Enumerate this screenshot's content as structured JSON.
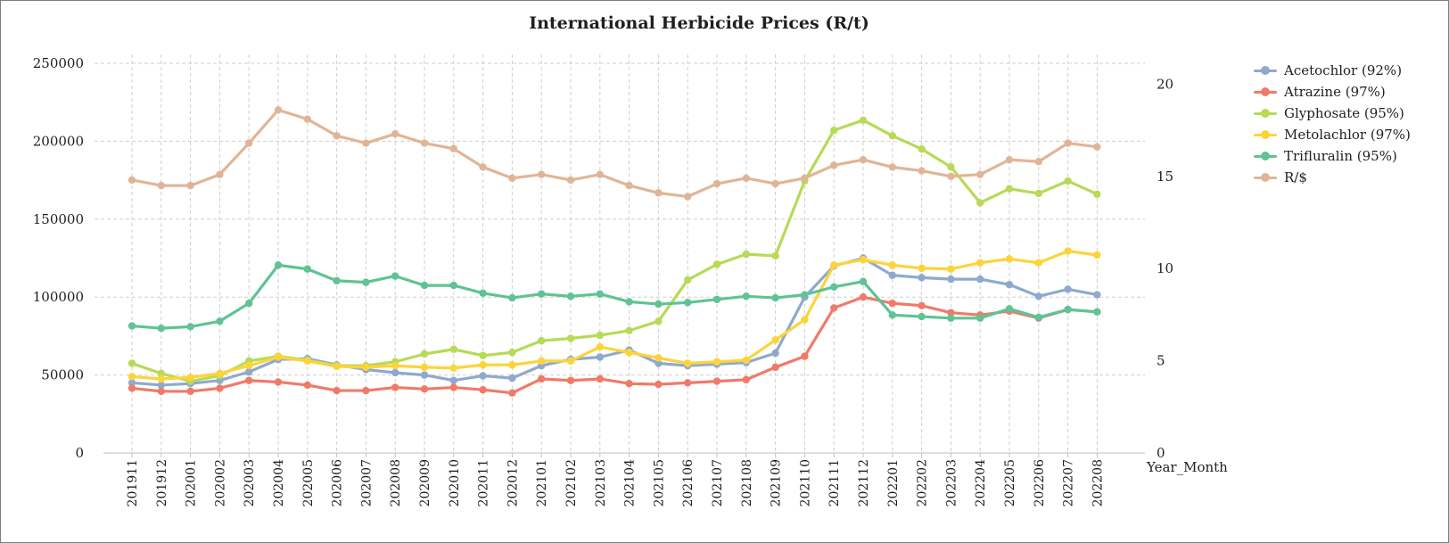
{
  "chart_data": {
    "type": "line",
    "title": "International Herbicide Prices (R/t)",
    "xlabel": "Year_Month",
    "ylabel": "",
    "categories": [
      "201911",
      "201912",
      "202001",
      "202002",
      "202003",
      "202004",
      "202005",
      "202006",
      "202007",
      "202008",
      "202009",
      "202010",
      "202011",
      "202012",
      "202101",
      "202102",
      "202103",
      "202104",
      "202105",
      "202106",
      "202107",
      "202108",
      "202109",
      "202110",
      "202111",
      "202112",
      "202201",
      "202202",
      "202203",
      "202204",
      "202205",
      "202206",
      "202207",
      "202208"
    ],
    "ylim": [
      0,
      250000
    ],
    "yticks": [
      "0",
      "50000",
      "100000",
      "150000",
      "200000",
      "250000"
    ],
    "y2lim": [
      0,
      22
    ],
    "y2ticks": [
      "0",
      "5",
      "10",
      "15",
      "20"
    ],
    "grid": true,
    "legend_position": "right",
    "series": [
      {
        "name": "Acetochlor (92%)",
        "axis": "left",
        "color": "#8FA9CE",
        "values": [
          45000,
          43500,
          44500,
          46500,
          52000,
          60000,
          60500,
          56500,
          53500,
          51500,
          50000,
          46500,
          49500,
          48000,
          56000,
          60000,
          61500,
          66000,
          57500,
          56000,
          57000,
          58000,
          64000,
          100000,
          120000,
          125000,
          114000,
          112500,
          111500,
          111500,
          108000,
          100500,
          105000,
          101500
        ]
      },
      {
        "name": "Atrazine (97%)",
        "axis": "left",
        "color": "#F07A6A",
        "values": [
          41500,
          39500,
          39500,
          41500,
          46500,
          45500,
          43500,
          40000,
          40000,
          42000,
          41000,
          42000,
          40500,
          38500,
          47500,
          46500,
          47500,
          44500,
          44000,
          45000,
          46000,
          47000,
          55000,
          62000,
          93000,
          100000,
          96000,
          94500,
          90000,
          88500,
          91000,
          86500,
          92000,
          90500
        ]
      },
      {
        "name": "Glyphosate (95%)",
        "axis": "left",
        "color": "#B7DA57",
        "values": [
          57500,
          51000,
          46000,
          49500,
          59000,
          62000,
          59500,
          56000,
          56000,
          58500,
          63500,
          66500,
          62500,
          64500,
          72000,
          73500,
          75500,
          78500,
          84500,
          111000,
          121000,
          127500,
          126500,
          174500,
          207000,
          213500,
          203500,
          195000,
          183500,
          160500,
          169500,
          166500,
          174500,
          166000
        ]
      },
      {
        "name": "Metolachlor (97%)",
        "axis": "left",
        "color": "#FCD43A",
        "values": [
          49000,
          47500,
          48500,
          51000,
          56000,
          61500,
          59000,
          55500,
          55000,
          56000,
          55000,
          54500,
          56500,
          56500,
          59000,
          59000,
          68000,
          64500,
          61000,
          57500,
          58500,
          59500,
          72500,
          85500,
          120500,
          124000,
          120500,
          118500,
          118000,
          122000,
          124500,
          122000,
          129500,
          127000
        ]
      },
      {
        "name": "Trifluralin (95%)",
        "axis": "left",
        "color": "#5FC394",
        "values": [
          81500,
          80000,
          81000,
          84500,
          96000,
          120500,
          118000,
          110500,
          109500,
          113500,
          107500,
          107500,
          102500,
          99500,
          102000,
          100500,
          102000,
          97000,
          95500,
          96500,
          98500,
          100500,
          99500,
          101500,
          106500,
          110000,
          88500,
          87500,
          86500,
          86500,
          92500,
          87000,
          92000,
          90500
        ]
      },
      {
        "name": "R/$",
        "axis": "right",
        "color": "#E0B597",
        "values": [
          14.8,
          14.5,
          14.5,
          15.1,
          16.8,
          18.6,
          18.1,
          17.2,
          16.8,
          17.3,
          16.8,
          16.5,
          15.5,
          14.9,
          15.1,
          14.8,
          15.1,
          14.5,
          14.1,
          13.9,
          14.6,
          14.9,
          14.6,
          14.9,
          15.6,
          15.9,
          15.5,
          15.3,
          15.0,
          15.1,
          15.9,
          15.8,
          16.8,
          16.6
        ]
      }
    ]
  }
}
